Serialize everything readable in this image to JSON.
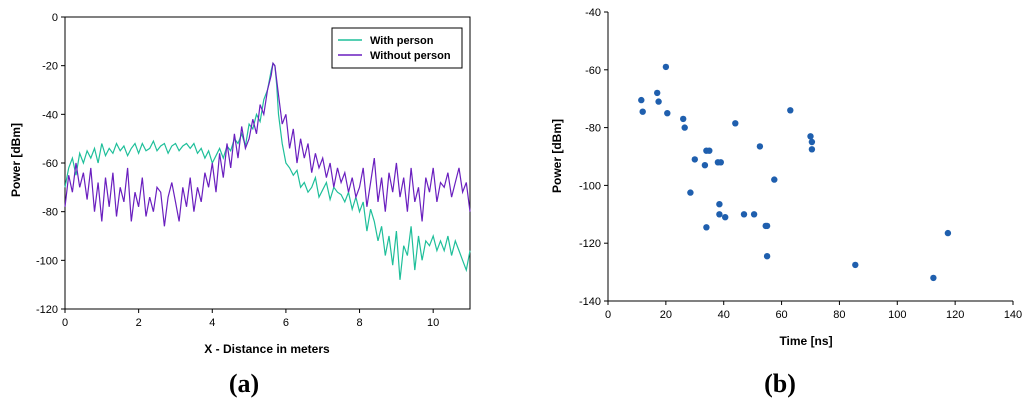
{
  "chart_data": [
    {
      "type": "line",
      "panel_label": "(a)",
      "xlabel": "X - Distance in meters",
      "ylabel": "Power [dBm]",
      "xlim": [
        0,
        11
      ],
      "ylim": [
        -120,
        0
      ],
      "xticks": [
        0,
        2,
        4,
        6,
        8,
        10
      ],
      "yticks": [
        0,
        -20,
        -40,
        -60,
        -80,
        -100,
        -120
      ],
      "legend_position": "top-right",
      "series": [
        {
          "name": "With person",
          "color": "#1fbf9a",
          "x": [
            0,
            0.1,
            0.2,
            0.3,
            0.4,
            0.5,
            0.6,
            0.7,
            0.8,
            0.9,
            1.0,
            1.1,
            1.2,
            1.3,
            1.4,
            1.5,
            1.6,
            1.7,
            1.8,
            1.9,
            2.0,
            2.1,
            2.2,
            2.3,
            2.4,
            2.5,
            2.6,
            2.7,
            2.8,
            2.9,
            3.0,
            3.1,
            3.2,
            3.3,
            3.4,
            3.5,
            3.6,
            3.7,
            3.8,
            3.9,
            4.0,
            4.1,
            4.2,
            4.3,
            4.4,
            4.5,
            4.6,
            4.7,
            4.8,
            4.9,
            5.0,
            5.1,
            5.2,
            5.3,
            5.4,
            5.5,
            5.6,
            5.65,
            5.7,
            5.75,
            5.8,
            5.9,
            6.0,
            6.1,
            6.2,
            6.3,
            6.4,
            6.5,
            6.6,
            6.7,
            6.8,
            6.9,
            7.0,
            7.1,
            7.2,
            7.3,
            7.4,
            7.5,
            7.6,
            7.7,
            7.8,
            7.9,
            8.0,
            8.1,
            8.2,
            8.3,
            8.4,
            8.5,
            8.6,
            8.7,
            8.8,
            8.9,
            9.0,
            9.1,
            9.2,
            9.3,
            9.4,
            9.5,
            9.6,
            9.7,
            9.8,
            9.9,
            10.0,
            10.1,
            10.2,
            10.3,
            10.4,
            10.5,
            10.6,
            10.7,
            10.8,
            10.9,
            11.0
          ],
          "y": [
            -70,
            -62,
            -58,
            -65,
            -56,
            -60,
            -55,
            -58,
            -54,
            -60,
            -52,
            -57,
            -54,
            -56,
            -52,
            -55,
            -53,
            -57,
            -54,
            -52,
            -56,
            -52,
            -55,
            -54,
            -51,
            -55,
            -53,
            -52,
            -56,
            -53,
            -52,
            -55,
            -53,
            -52,
            -54,
            -52,
            -56,
            -54,
            -58,
            -55,
            -60,
            -57,
            -54,
            -58,
            -53,
            -55,
            -50,
            -52,
            -48,
            -53,
            -44,
            -46,
            -40,
            -43,
            -34,
            -30,
            -22,
            -19,
            -20,
            -28,
            -40,
            -52,
            -60,
            -62,
            -65,
            -63,
            -70,
            -68,
            -72,
            -70,
            -66,
            -74,
            -71,
            -68,
            -75,
            -70,
            -72,
            -73,
            -76,
            -72,
            -79,
            -74,
            -80,
            -76,
            -88,
            -79,
            -84,
            -92,
            -86,
            -98,
            -90,
            -102,
            -88,
            -108,
            -94,
            -98,
            -86,
            -104,
            -90,
            -100,
            -92,
            -94,
            -90,
            -96,
            -92,
            -96,
            -90,
            -98,
            -92,
            -96,
            -100,
            -104,
            -96
          ]
        },
        {
          "name": "Without person",
          "color": "#6a1fbf",
          "x": [
            0,
            0.1,
            0.2,
            0.3,
            0.4,
            0.5,
            0.6,
            0.7,
            0.8,
            0.9,
            1.0,
            1.1,
            1.2,
            1.3,
            1.4,
            1.5,
            1.6,
            1.7,
            1.8,
            1.9,
            2.0,
            2.1,
            2.2,
            2.3,
            2.4,
            2.5,
            2.6,
            2.7,
            2.8,
            2.9,
            3.0,
            3.1,
            3.2,
            3.3,
            3.4,
            3.5,
            3.6,
            3.7,
            3.8,
            3.9,
            4.0,
            4.1,
            4.2,
            4.3,
            4.4,
            4.5,
            4.6,
            4.7,
            4.8,
            4.9,
            5.0,
            5.1,
            5.2,
            5.3,
            5.4,
            5.5,
            5.6,
            5.65,
            5.7,
            5.75,
            5.8,
            5.9,
            6.0,
            6.1,
            6.2,
            6.3,
            6.4,
            6.5,
            6.6,
            6.7,
            6.8,
            6.9,
            7.0,
            7.1,
            7.2,
            7.3,
            7.4,
            7.5,
            7.6,
            7.7,
            7.8,
            7.9,
            8.0,
            8.1,
            8.2,
            8.3,
            8.4,
            8.5,
            8.6,
            8.7,
            8.8,
            8.9,
            9.0,
            9.1,
            9.2,
            9.3,
            9.4,
            9.5,
            9.6,
            9.7,
            9.8,
            9.9,
            10.0,
            10.1,
            10.2,
            10.3,
            10.4,
            10.5,
            10.6,
            10.7,
            10.8,
            10.9,
            11.0
          ],
          "y": [
            -78,
            -65,
            -72,
            -60,
            -70,
            -64,
            -75,
            -62,
            -80,
            -68,
            -84,
            -66,
            -78,
            -64,
            -82,
            -70,
            -76,
            -62,
            -84,
            -72,
            -78,
            -66,
            -82,
            -74,
            -80,
            -70,
            -72,
            -86,
            -74,
            -68,
            -76,
            -84,
            -70,
            -78,
            -66,
            -80,
            -70,
            -76,
            -64,
            -70,
            -60,
            -72,
            -56,
            -66,
            -52,
            -62,
            -48,
            -58,
            -45,
            -54,
            -50,
            -42,
            -48,
            -36,
            -40,
            -30,
            -24,
            -19,
            -20,
            -26,
            -32,
            -44,
            -40,
            -54,
            -46,
            -60,
            -50,
            -58,
            -52,
            -64,
            -56,
            -62,
            -58,
            -66,
            -60,
            -70,
            -62,
            -68,
            -64,
            -72,
            -66,
            -74,
            -70,
            -62,
            -78,
            -68,
            -58,
            -76,
            -66,
            -80,
            -64,
            -72,
            -60,
            -74,
            -66,
            -80,
            -62,
            -76,
            -70,
            -84,
            -66,
            -72,
            -62,
            -76,
            -68,
            -70,
            -64,
            -74,
            -68,
            -62,
            -72,
            -68,
            -80
          ]
        }
      ]
    },
    {
      "type": "scatter",
      "panel_label": "(b)",
      "xlabel": "Time [ns]",
      "ylabel": "Power [dBm]",
      "xlim": [
        0,
        140
      ],
      "ylim": [
        -140,
        -40
      ],
      "xticks": [
        0,
        20,
        40,
        60,
        80,
        100,
        120,
        140
      ],
      "yticks": [
        -40,
        -60,
        -80,
        -100,
        -120,
        -140
      ],
      "grid": false,
      "color": "#1f5fae",
      "points": [
        {
          "x": 11.5,
          "y": -70.5
        },
        {
          "x": 12,
          "y": -74.5
        },
        {
          "x": 17,
          "y": -68
        },
        {
          "x": 17.5,
          "y": -71
        },
        {
          "x": 20,
          "y": -59
        },
        {
          "x": 20.5,
          "y": -75
        },
        {
          "x": 26,
          "y": -77
        },
        {
          "x": 26.5,
          "y": -80
        },
        {
          "x": 28.5,
          "y": -102.5
        },
        {
          "x": 30,
          "y": -91
        },
        {
          "x": 33.5,
          "y": -93
        },
        {
          "x": 34,
          "y": -88
        },
        {
          "x": 35,
          "y": -88
        },
        {
          "x": 34,
          "y": -114.5
        },
        {
          "x": 38,
          "y": -92
        },
        {
          "x": 39,
          "y": -92
        },
        {
          "x": 38.5,
          "y": -106.5
        },
        {
          "x": 38.5,
          "y": -110
        },
        {
          "x": 40.5,
          "y": -111
        },
        {
          "x": 44,
          "y": -78.5
        },
        {
          "x": 47,
          "y": -110
        },
        {
          "x": 50.5,
          "y": -110
        },
        {
          "x": 52.5,
          "y": -86.5
        },
        {
          "x": 54.5,
          "y": -114
        },
        {
          "x": 55,
          "y": -124.5
        },
        {
          "x": 55,
          "y": -114
        },
        {
          "x": 57.5,
          "y": -98
        },
        {
          "x": 63,
          "y": -74
        },
        {
          "x": 70,
          "y": -83
        },
        {
          "x": 70.5,
          "y": -85
        },
        {
          "x": 70.5,
          "y": -87.5
        },
        {
          "x": 85.5,
          "y": -127.5
        },
        {
          "x": 112.5,
          "y": -132
        },
        {
          "x": 117.5,
          "y": -116.5
        }
      ]
    }
  ]
}
